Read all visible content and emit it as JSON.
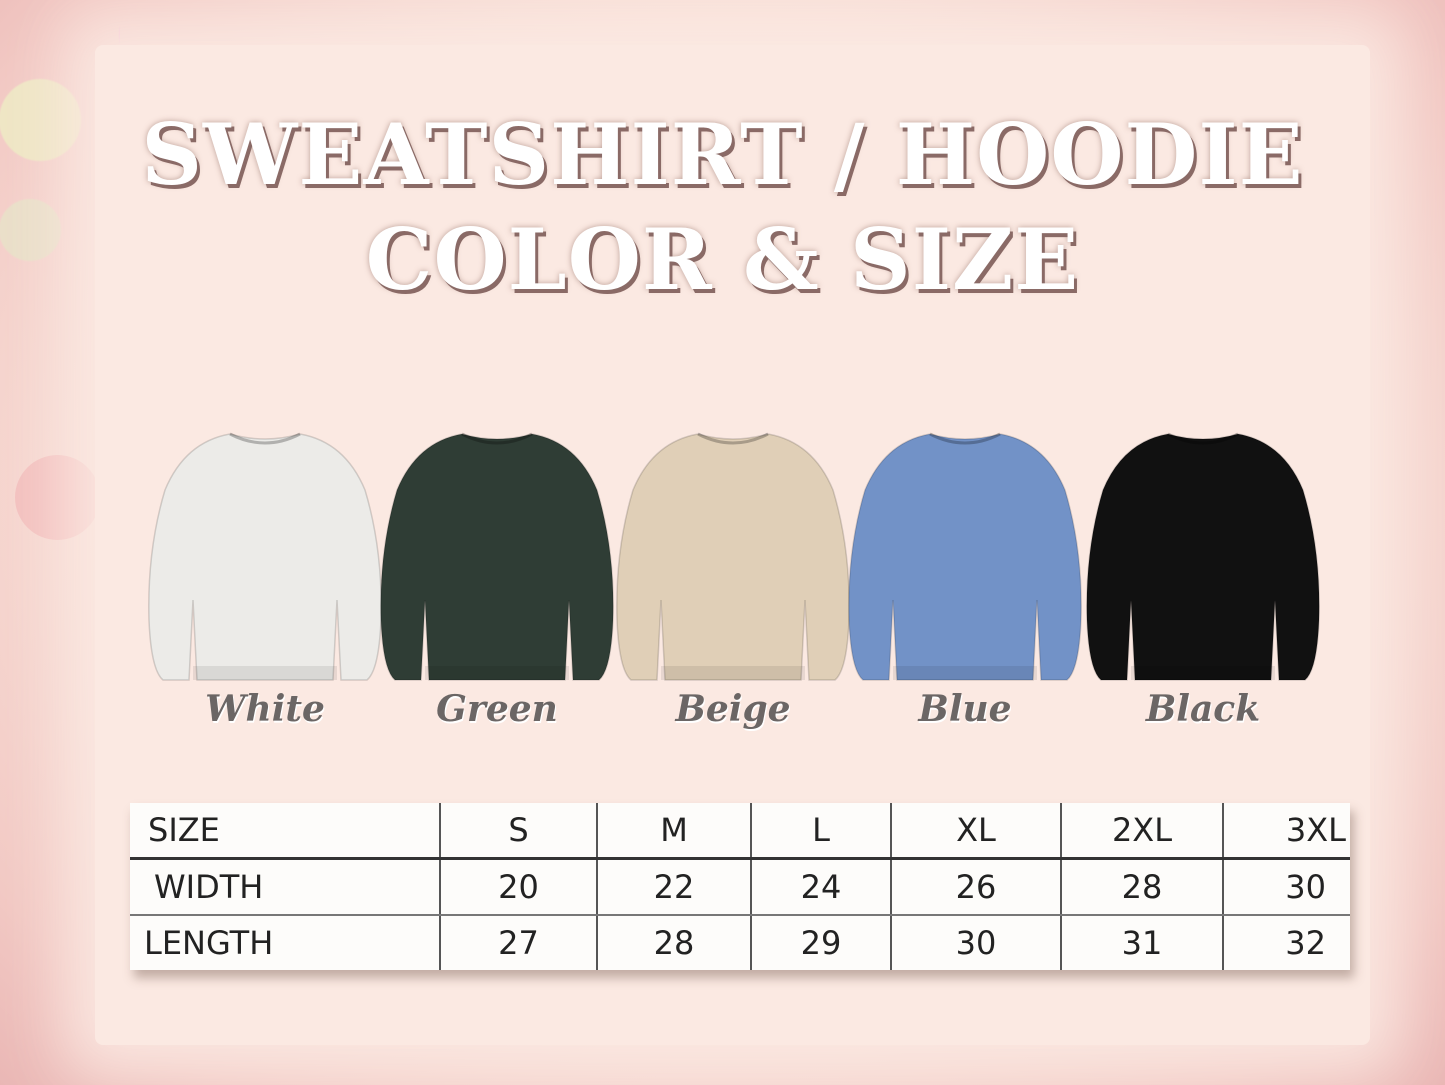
{
  "title": {
    "line1": "SWEATSHIRT / HOODIE",
    "line2": "COLOR & SIZE"
  },
  "colors": [
    {
      "label": "White",
      "hex": "#ecebe8"
    },
    {
      "label": "Green",
      "hex": "#2f3d35"
    },
    {
      "label": "Beige",
      "hex": "#e0cfb7"
    },
    {
      "label": "Blue",
      "hex": "#7292c7"
    },
    {
      "label": "Black",
      "hex": "#111111"
    }
  ],
  "size_table": {
    "header": [
      "SIZE",
      "S",
      "M",
      "L",
      "XL",
      "2XL",
      "3XL"
    ],
    "rows": [
      [
        "WIDTH",
        "20",
        "22",
        "24",
        "26",
        "28",
        "30"
      ],
      [
        "LENGTH",
        "27",
        "28",
        "29",
        "30",
        "31",
        "32"
      ]
    ]
  }
}
